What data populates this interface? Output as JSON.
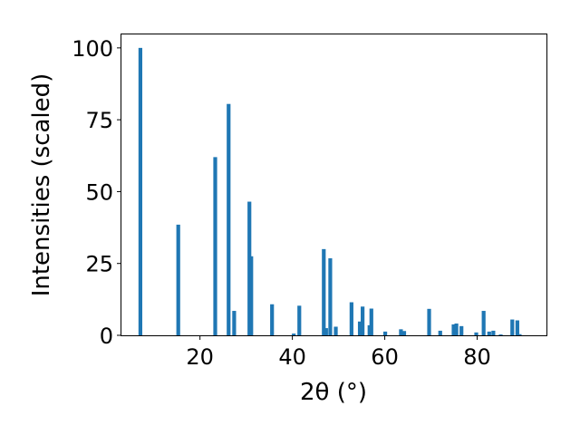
{
  "chart_data": {
    "type": "bar",
    "title": "",
    "xlabel": "2θ (°)",
    "ylabel": "Intensities (scaled)",
    "xlim": [
      3,
      95
    ],
    "ylim": [
      0,
      105
    ],
    "xticks": [
      "20",
      "40",
      "60",
      "80"
    ],
    "xtick_values": [
      20,
      40,
      60,
      80
    ],
    "yticks": [
      "0",
      "25",
      "50",
      "75",
      "100"
    ],
    "ytick_values": [
      0,
      25,
      50,
      75,
      100
    ],
    "grid": false,
    "bar_color": "#1f77b4",
    "x": [
      7.1,
      15.3,
      23.3,
      26.2,
      27.4,
      30.7,
      31.1,
      35.6,
      40.3,
      41.5,
      46.8,
      47.3,
      48.2,
      49.4,
      52.8,
      54.6,
      55.2,
      56.7,
      57.1,
      60.1,
      63.5,
      64.2,
      69.6,
      72.0,
      74.9,
      75.5,
      76.6,
      79.8,
      81.4,
      82.6,
      83.5,
      85.1,
      87.6,
      88.7,
      89.2
    ],
    "values": [
      100,
      38.5,
      62,
      80.5,
      8.5,
      46.5,
      27.5,
      10.8,
      0.6,
      10.3,
      30,
      2.5,
      26.8,
      3,
      11.5,
      4.8,
      10,
      3.5,
      9.3,
      1.3,
      2.1,
      1.5,
      9.2,
      1.6,
      3.8,
      4.1,
      3.2,
      1,
      8.5,
      1.3,
      1.6,
      0.3,
      5.5,
      5.2,
      0.4
    ]
  }
}
